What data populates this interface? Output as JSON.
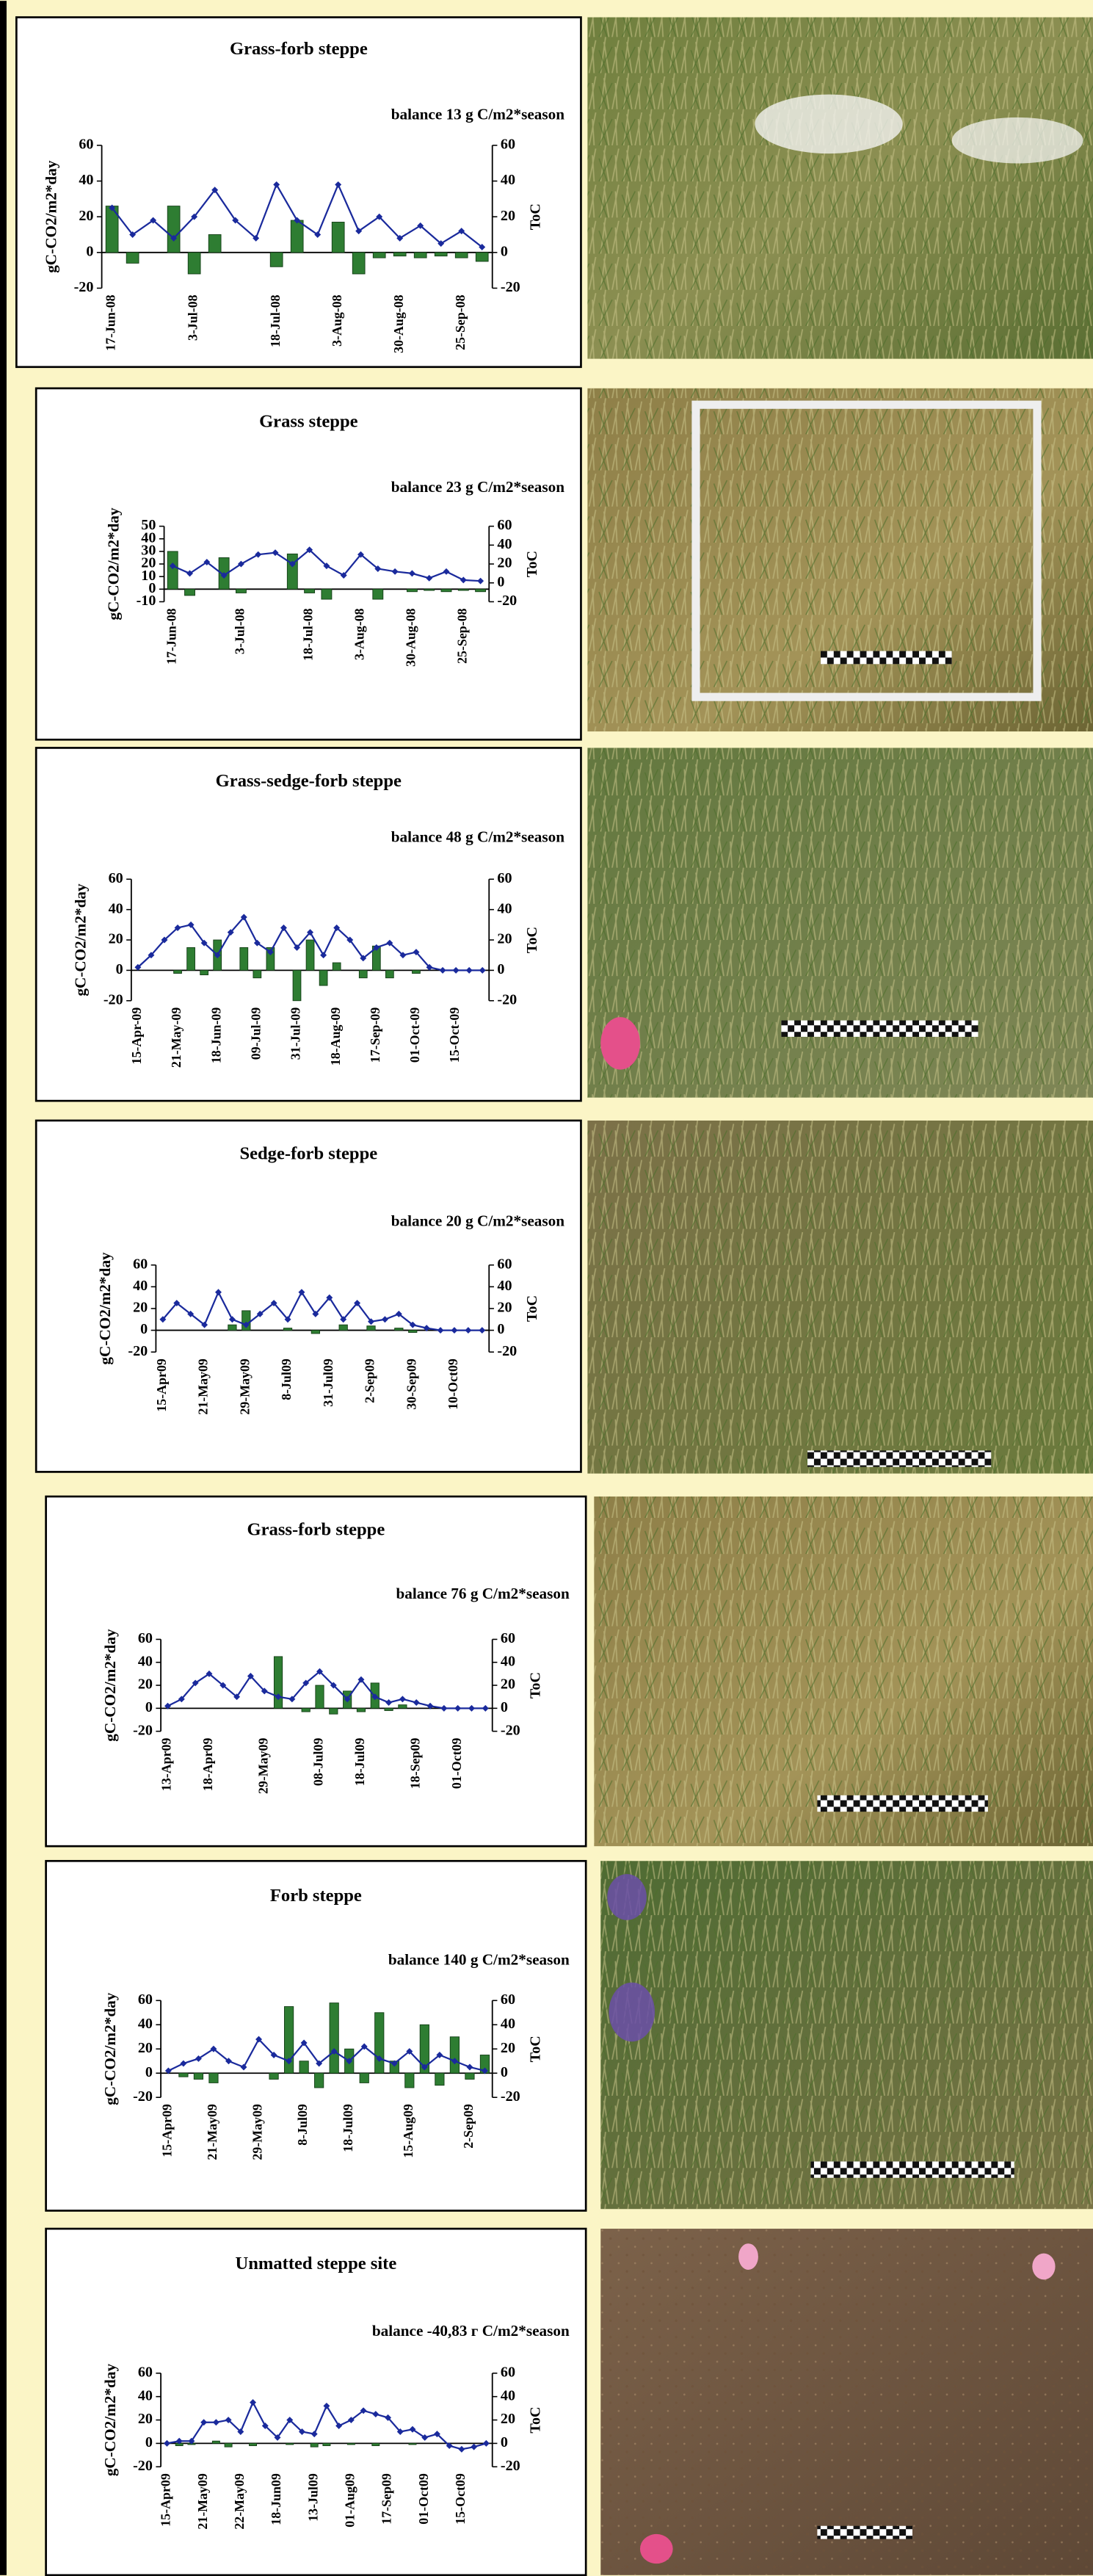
{
  "chart_data": [
    {
      "type": "bar_line",
      "title": "Grass-forb steppe",
      "subtitle": "balance 13 g C/m2*season",
      "ylabel": "gC-CO2/m2*day",
      "y2label": "ToC",
      "categories": [
        "17-Jun-08",
        null,
        null,
        null,
        "3-Jul-08",
        null,
        null,
        null,
        "18-Jul-08",
        null,
        null,
        "3-Aug-08",
        null,
        null,
        "30-Aug-08",
        null,
        null,
        "25-Sep-08",
        null
      ],
      "series": [
        {
          "type": "bar",
          "color": "#2e7d32",
          "values": [
            26,
            -6,
            0,
            26,
            -12,
            10,
            0,
            0,
            -8,
            18,
            0,
            17,
            -12,
            -3,
            -2,
            -3,
            -2,
            -3,
            -5
          ]
        },
        {
          "type": "line",
          "color": "#1a2a9c",
          "axis": "y2",
          "values": [
            25,
            10,
            18,
            8,
            20,
            35,
            18,
            8,
            38,
            18,
            10,
            38,
            12,
            20,
            8,
            15,
            5,
            12,
            3
          ]
        }
      ],
      "ylim": [
        -20,
        60
      ],
      "yticks": [
        -20,
        0,
        20,
        40,
        60
      ],
      "y2lim": [
        -20,
        60
      ],
      "y2ticks": [
        -20,
        0,
        20,
        40,
        60
      ]
    },
    {
      "type": "bar_line",
      "title": "Grass steppe",
      "subtitle": "balance 23 g C/m2*season",
      "ylabel": "gC-CO2/m2*day",
      "y2label": "ToC",
      "categories": [
        "17-Jun-08",
        null,
        null,
        null,
        "3-Jul-08",
        null,
        null,
        null,
        "18-Jul-08",
        null,
        null,
        "3-Aug-08",
        null,
        null,
        "30-Aug-08",
        null,
        null,
        "25-Sep-08",
        null
      ],
      "series": [
        {
          "type": "bar",
          "color": "#2e7d32",
          "values": [
            30,
            -5,
            0,
            25,
            -3,
            0,
            0,
            28,
            -3,
            -8,
            0,
            0,
            -8,
            0,
            -2,
            -1,
            -2,
            -1,
            -2
          ]
        },
        {
          "type": "line",
          "color": "#1a2a9c",
          "axis": "y2",
          "values": [
            18,
            10,
            22,
            8,
            20,
            30,
            32,
            20,
            35,
            18,
            8,
            30,
            15,
            12,
            10,
            5,
            12,
            3,
            2
          ]
        }
      ],
      "ylim": [
        -10,
        50
      ],
      "yticks": [
        -10,
        0,
        10,
        20,
        30,
        40,
        50
      ],
      "y2lim": [
        -20,
        60
      ],
      "y2ticks": [
        -20,
        0,
        20,
        40,
        60
      ]
    },
    {
      "type": "bar_line",
      "title": "Grass-sedge-forb steppe",
      "subtitle": "balance 48 g C/m2*season",
      "ylabel": "gC-CO2/m2*day",
      "y2label": "ToC",
      "categories": [
        "15-Apr-09",
        null,
        null,
        "21-May-09",
        null,
        null,
        "18-Jun-09",
        null,
        null,
        "09-Jul-09",
        null,
        null,
        "31-Jul-09",
        null,
        null,
        "18-Aug-09",
        null,
        null,
        "17-Sep-09",
        null,
        null,
        "01-Oct-09",
        null,
        null,
        "15-Oct-09",
        null,
        null
      ],
      "series": [
        {
          "type": "bar",
          "color": "#2e7d32",
          "values": [
            0,
            0,
            0,
            -2,
            15,
            -3,
            20,
            0,
            15,
            -5,
            15,
            0,
            -20,
            20,
            -10,
            5,
            0,
            -5,
            16,
            -5,
            0,
            -2,
            0,
            0,
            0,
            0,
            0
          ]
        },
        {
          "type": "line",
          "color": "#1a2a9c",
          "axis": "y2",
          "values": [
            2,
            10,
            20,
            28,
            30,
            18,
            10,
            25,
            35,
            18,
            12,
            28,
            15,
            25,
            10,
            28,
            20,
            8,
            15,
            18,
            10,
            12,
            2,
            0,
            0,
            0,
            0
          ]
        }
      ],
      "ylim": [
        -20,
        60
      ],
      "yticks": [
        -20,
        0,
        20,
        40,
        60
      ],
      "y2lim": [
        -20,
        60
      ],
      "y2ticks": [
        -20,
        0,
        20,
        40,
        60
      ]
    },
    {
      "type": "bar_line",
      "title": "Sedge-forb steppe",
      "subtitle": "balance 20 g C/m2*season",
      "ylabel": "gC-CO2/m2*day",
      "y2label": "ToC",
      "categories": [
        "15-Apr09",
        null,
        null,
        "21-May09",
        null,
        null,
        "29-May09",
        null,
        null,
        "8-Jul09",
        null,
        null,
        "31-Jul09",
        null,
        null,
        "2-Sep09",
        null,
        null,
        "30-Sep09",
        null,
        null,
        "10-Oct09",
        null,
        null
      ],
      "series": [
        {
          "type": "bar",
          "color": "#2e7d32",
          "values": [
            0,
            0,
            0,
            0,
            0,
            5,
            18,
            0,
            0,
            2,
            0,
            -3,
            0,
            5,
            0,
            4,
            0,
            2,
            -2,
            0,
            0,
            0,
            0,
            0
          ]
        },
        {
          "type": "line",
          "color": "#1a2a9c",
          "axis": "y2",
          "values": [
            10,
            25,
            15,
            5,
            35,
            10,
            5,
            15,
            25,
            10,
            35,
            15,
            30,
            10,
            25,
            8,
            10,
            15,
            5,
            2,
            0,
            0,
            0,
            0
          ]
        }
      ],
      "ylim": [
        -20,
        60
      ],
      "yticks": [
        -20,
        0,
        20,
        40,
        60
      ],
      "y2lim": [
        -20,
        60
      ],
      "y2ticks": [
        -20,
        0,
        20,
        40,
        60
      ]
    },
    {
      "type": "bar_line",
      "title": "Grass-forb steppe",
      "subtitle": "balance 76 g C/m2*season",
      "ylabel": "gC-CO2/m2*day",
      "y2label": "ToC",
      "categories": [
        "13-Apr09",
        null,
        null,
        "18-Apr09",
        null,
        null,
        null,
        "29-May09",
        null,
        null,
        null,
        "08-Jul09",
        null,
        null,
        "18-Jul09",
        null,
        null,
        null,
        "18-Sep09",
        null,
        null,
        "01-Oct09",
        null,
        null
      ],
      "series": [
        {
          "type": "bar",
          "color": "#2e7d32",
          "values": [
            0,
            0,
            0,
            0,
            0,
            0,
            0,
            0,
            45,
            0,
            -3,
            20,
            -5,
            15,
            -3,
            22,
            -2,
            3,
            0,
            0,
            0,
            0,
            0,
            0
          ]
        },
        {
          "type": "line",
          "color": "#1a2a9c",
          "axis": "y2",
          "values": [
            2,
            8,
            22,
            30,
            20,
            10,
            28,
            15,
            10,
            8,
            22,
            32,
            20,
            8,
            25,
            10,
            5,
            8,
            5,
            2,
            0,
            0,
            0,
            0
          ]
        }
      ],
      "ylim": [
        -20,
        60
      ],
      "yticks": [
        -20,
        0,
        20,
        40,
        60
      ],
      "y2lim": [
        -20,
        60
      ],
      "y2ticks": [
        -20,
        0,
        20,
        40,
        60
      ]
    },
    {
      "type": "bar_line",
      "title": "Forb steppe",
      "subtitle": "balance 140 g C/m2*season",
      "ylabel": "gC-CO2/m2*day",
      "y2label": "ToC",
      "categories": [
        "15-Apr09",
        null,
        null,
        "21-May09",
        null,
        null,
        "29-May09",
        null,
        null,
        "8-Jul09",
        null,
        null,
        "18-Jul09",
        null,
        null,
        null,
        "15-Aug09",
        null,
        null,
        null,
        "2-Sep09",
        null
      ],
      "series": [
        {
          "type": "bar",
          "color": "#2e7d32",
          "values": [
            0,
            -3,
            -5,
            -8,
            0,
            0,
            0,
            -5,
            55,
            10,
            -12,
            58,
            20,
            -8,
            50,
            10,
            -12,
            40,
            -10,
            30,
            -5,
            15
          ]
        },
        {
          "type": "line",
          "color": "#1a2a9c",
          "axis": "y2",
          "values": [
            2,
            8,
            12,
            20,
            10,
            5,
            28,
            15,
            10,
            25,
            8,
            18,
            10,
            22,
            12,
            8,
            18,
            5,
            15,
            10,
            5,
            2
          ]
        }
      ],
      "ylim": [
        -20,
        60
      ],
      "yticks": [
        -20,
        0,
        20,
        40,
        60
      ],
      "y2lim": [
        -20,
        60
      ],
      "y2ticks": [
        -20,
        0,
        20,
        40,
        60
      ]
    },
    {
      "type": "bar_line",
      "title": "Unmatted steppe site",
      "subtitle": "balance -40,83 г C/m2*season",
      "ylabel": "gC-CO2/m2*day",
      "y2label": "ToC",
      "categories": [
        "15-Apr09",
        null,
        null,
        "21-May09",
        null,
        null,
        "22-May09",
        null,
        null,
        "18-Jun09",
        null,
        null,
        "13-Jul09",
        null,
        null,
        "01-Aug09",
        null,
        null,
        "17-Sep09",
        null,
        null,
        "01-Oct09",
        null,
        null,
        "15-Oct09",
        null,
        null
      ],
      "series": [
        {
          "type": "bar",
          "color": "#2e7d32",
          "values": [
            0,
            -2,
            -1,
            0,
            2,
            -3,
            0,
            -2,
            0,
            0,
            -1,
            0,
            -3,
            -2,
            0,
            -1,
            0,
            -2,
            0,
            0,
            -1,
            0,
            0,
            0,
            0,
            0,
            0
          ]
        },
        {
          "type": "line",
          "color": "#1a2a9c",
          "axis": "y2",
          "values": [
            0,
            2,
            2,
            18,
            18,
            20,
            10,
            35,
            15,
            5,
            20,
            10,
            8,
            32,
            15,
            20,
            28,
            25,
            22,
            10,
            12,
            5,
            8,
            -2,
            -5,
            -3,
            0
          ]
        }
      ],
      "ylim": [
        -20,
        60
      ],
      "yticks": [
        -20,
        0,
        20,
        40,
        60
      ],
      "y2lim": [
        -20,
        60
      ],
      "y2ticks": [
        -20,
        0,
        20,
        40,
        60
      ]
    }
  ]
}
